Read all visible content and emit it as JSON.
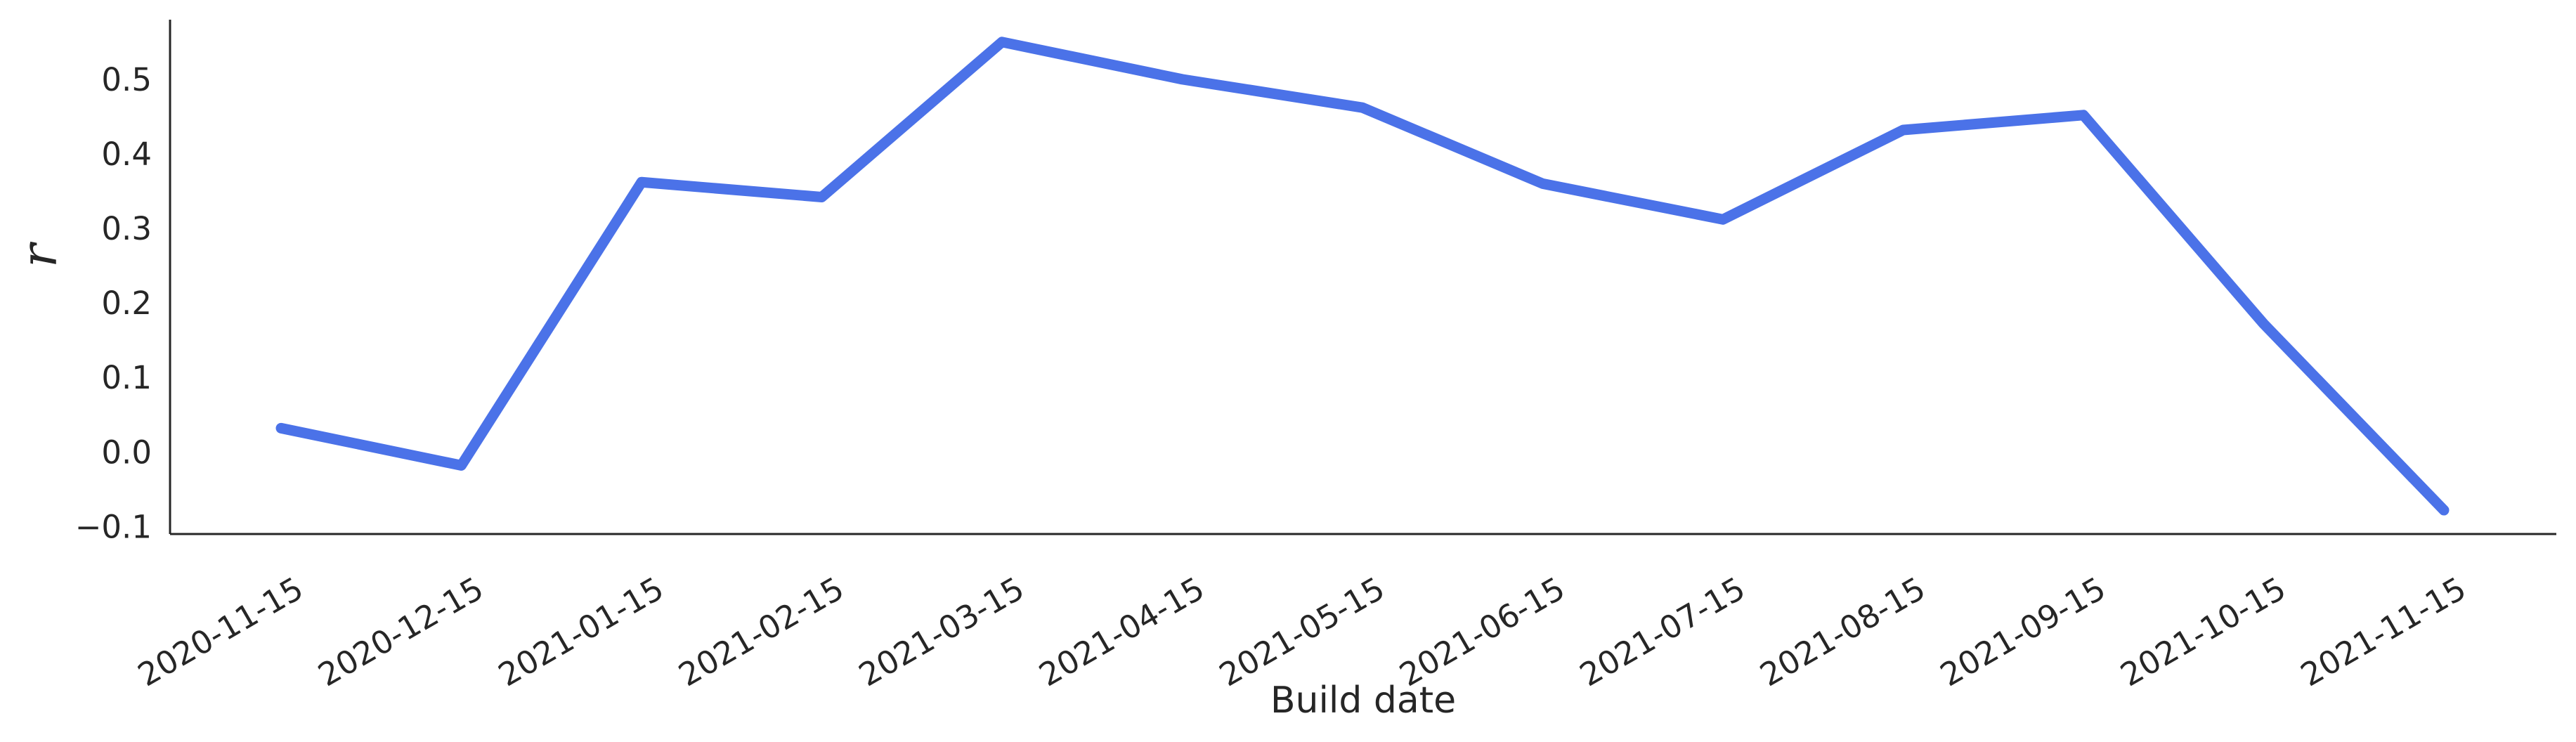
{
  "chart_data": {
    "type": "line",
    "title": "",
    "xlabel": "Build date",
    "ylabel": "r",
    "x": [
      "2020-11-15",
      "2020-12-15",
      "2021-01-15",
      "2021-02-15",
      "2021-03-15",
      "2021-04-15",
      "2021-05-15",
      "2021-06-15",
      "2021-07-15",
      "2021-08-15",
      "2021-09-15",
      "2021-10-15",
      "2021-11-15"
    ],
    "series": [
      {
        "color": "#4b72e8",
        "values": [
          0.032,
          -0.018,
          0.362,
          0.342,
          0.55,
          0.5,
          0.462,
          0.36,
          0.312,
          0.432,
          0.452,
          0.172,
          -0.078
        ]
      }
    ],
    "yticks": [
      "0.5",
      "0.4",
      "0.3",
      "0.2",
      "0.1",
      "0.0",
      "−0.1"
    ],
    "ytick_values": [
      0.5,
      0.4,
      0.3,
      0.2,
      0.1,
      0.0,
      -0.1
    ],
    "ylim": [
      -0.11,
      0.58
    ],
    "grid": false,
    "legend": "none"
  }
}
